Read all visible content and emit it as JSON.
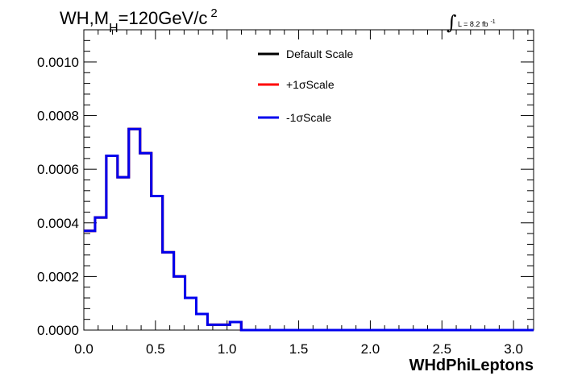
{
  "chart_data": {
    "type": "step-histogram",
    "title_parts": {
      "main": "WH,M",
      "sub": "H",
      "rest": "=120GeV/c",
      "sup": "2"
    },
    "lumi_label": {
      "text": "L = 8.2 fb",
      "sup": "-1"
    },
    "xlabel": "WHdPhiLeptons",
    "ylabel": "",
    "xlim": [
      0.0,
      3.14
    ],
    "ylim": [
      0.0,
      0.00112
    ],
    "x_ticks": [
      "0.0",
      "0.5",
      "1.0",
      "1.5",
      "2.0",
      "2.5",
      "3.0"
    ],
    "y_ticks": [
      "0.0000",
      "0.0002",
      "0.0004",
      "0.0006",
      "0.0008",
      "0.0010"
    ],
    "bin_width": 0.0785,
    "bin_edges_start": 0.0,
    "series": [
      {
        "name": "Default Scale",
        "color": "#000000",
        "values": [
          0.00037,
          0.00042,
          0.00065,
          0.00057,
          0.00075,
          0.00066,
          0.0005,
          0.00029,
          0.0002,
          0.00012,
          6e-05,
          2e-05,
          2e-05,
          3e-05,
          0.0,
          0.0,
          0.0,
          0.0,
          0.0,
          0.0,
          0.0,
          0.0,
          0.0,
          0.0,
          0.0,
          0.0,
          0.0,
          0.0,
          0.0,
          0.0,
          0.0,
          0.0,
          0.0,
          0.0,
          0.0,
          0.0,
          0.0,
          0.0,
          0.0,
          0.0
        ]
      },
      {
        "name": "+1σScale",
        "color": "#ff0000",
        "values": [
          0.00037,
          0.00042,
          0.00065,
          0.00057,
          0.00075,
          0.00066,
          0.0005,
          0.00029,
          0.0002,
          0.00012,
          6e-05,
          2e-05,
          2e-05,
          3e-05,
          0.0,
          0.0,
          0.0,
          0.0,
          0.0,
          0.0,
          0.0,
          0.0,
          0.0,
          0.0,
          0.0,
          0.0,
          0.0,
          0.0,
          0.0,
          0.0,
          0.0,
          0.0,
          0.0,
          0.0,
          0.0,
          0.0,
          0.0,
          0.0,
          0.0,
          0.0
        ]
      },
      {
        "name": "-1σScale",
        "color": "#0000ee",
        "values": [
          0.00037,
          0.00042,
          0.00065,
          0.00057,
          0.00075,
          0.00066,
          0.0005,
          0.00029,
          0.0002,
          0.00012,
          6e-05,
          2e-05,
          2e-05,
          3e-05,
          0.0,
          0.0,
          0.0,
          0.0,
          0.0,
          0.0,
          0.0,
          0.0,
          0.0,
          0.0,
          0.0,
          0.0,
          0.0,
          0.0,
          0.0,
          0.0,
          0.0,
          0.0,
          0.0,
          0.0,
          0.0,
          0.0,
          0.0,
          0.0,
          0.0,
          0.0
        ]
      }
    ],
    "legend_position": "top-center",
    "grid": false
  }
}
